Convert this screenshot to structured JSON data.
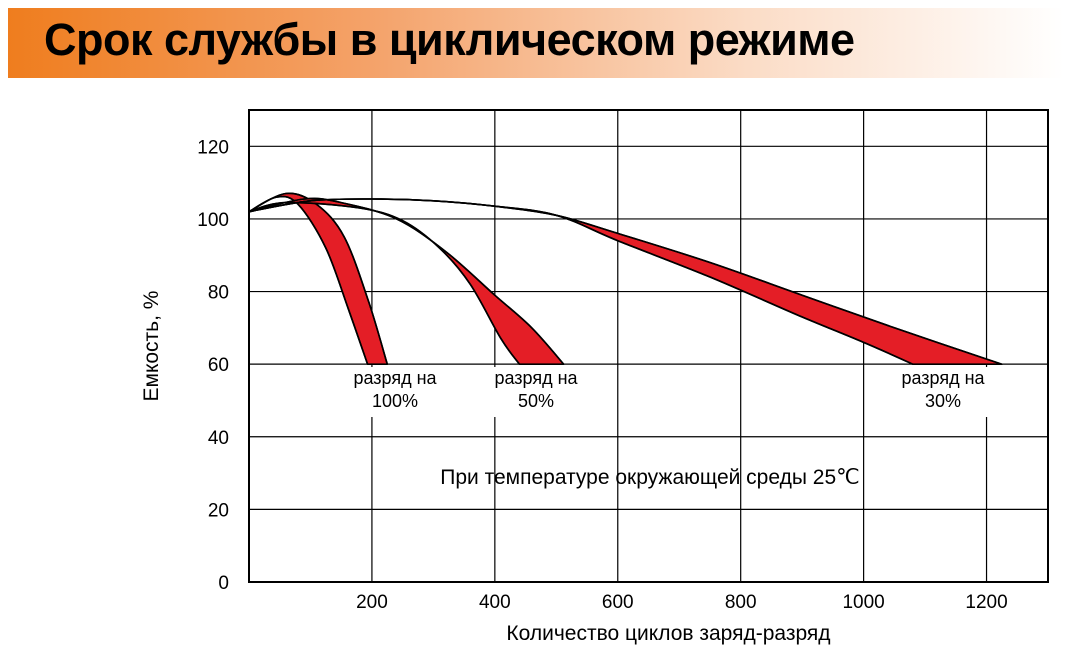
{
  "page": {
    "title": "Срок службы в циклическом режиме",
    "accent_color": "#ef7d1e"
  },
  "chart_data": {
    "type": "area",
    "title": "",
    "xlabel": "Количество циклов заряд-разряд",
    "ylabel": "Емкость, %",
    "xlim": [
      0,
      1300
    ],
    "ylim": [
      0,
      130
    ],
    "xticks": [
      200,
      400,
      600,
      800,
      1000,
      1200
    ],
    "yticks": [
      0,
      20,
      40,
      60,
      80,
      100,
      120
    ],
    "grid": true,
    "band_color": "#e41e26",
    "series": [
      {
        "name": "разряд на 100%",
        "label_lines": [
          "разряд на",
          "100%"
        ],
        "upper": [
          [
            0,
            102
          ],
          [
            60,
            107
          ],
          [
            110,
            104
          ],
          [
            155,
            95
          ],
          [
            195,
            77
          ],
          [
            225,
            60
          ]
        ],
        "lower": [
          [
            0,
            102
          ],
          [
            45,
            106
          ],
          [
            80,
            104
          ],
          [
            125,
            92
          ],
          [
            162,
            75
          ],
          [
            193,
            60
          ]
        ]
      },
      {
        "name": "разряд на 50%",
        "label_lines": [
          "разряд на",
          "50%"
        ],
        "upper": [
          [
            0,
            102
          ],
          [
            90,
            105.5
          ],
          [
            150,
            104.5
          ],
          [
            240,
            100
          ],
          [
            320,
            91
          ],
          [
            400,
            79
          ],
          [
            460,
            70
          ],
          [
            512,
            60
          ]
        ],
        "lower": [
          [
            0,
            102
          ],
          [
            60,
            104.5
          ],
          [
            180,
            103
          ],
          [
            250,
            99.5
          ],
          [
            310,
            92
          ],
          [
            360,
            82
          ],
          [
            410,
            67
          ],
          [
            440,
            60
          ]
        ]
      },
      {
        "name": "разряд на 30%",
        "label_lines": [
          "разряд на",
          "30%"
        ],
        "upper": [
          [
            0,
            102
          ],
          [
            100,
            105
          ],
          [
            200,
            105.5
          ],
          [
            300,
            105
          ],
          [
            400,
            103.5
          ],
          [
            500,
            101
          ],
          [
            600,
            96
          ],
          [
            750,
            88
          ],
          [
            900,
            79
          ],
          [
            1050,
            70
          ],
          [
            1225,
            60
          ]
        ],
        "lower": [
          [
            0,
            102
          ],
          [
            100,
            105
          ],
          [
            200,
            105.5
          ],
          [
            300,
            105
          ],
          [
            400,
            103.5
          ],
          [
            500,
            101
          ],
          [
            600,
            94
          ],
          [
            750,
            84
          ],
          [
            900,
            73
          ],
          [
            1000,
            66
          ],
          [
            1080,
            60
          ]
        ]
      }
    ],
    "annotation": "При температуре окружающей среды 25℃"
  }
}
